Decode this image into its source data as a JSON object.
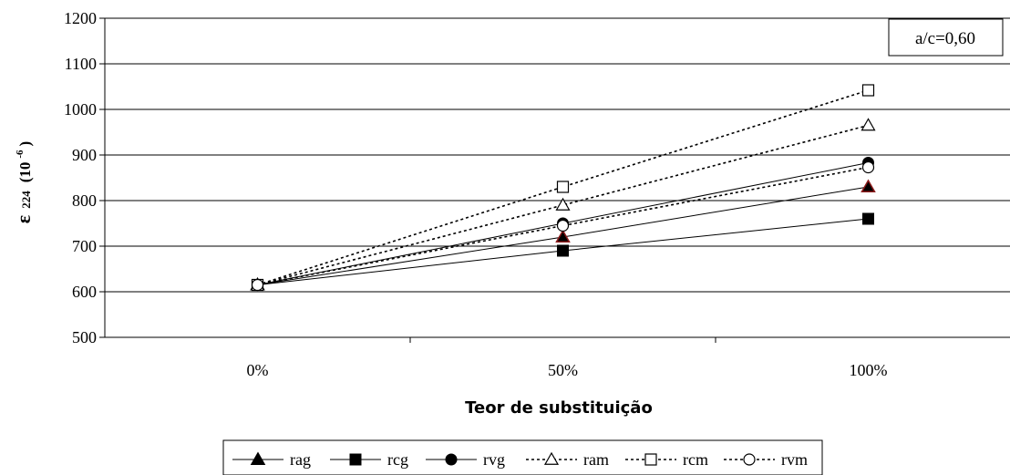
{
  "chart_data": {
    "type": "line",
    "title": "",
    "xlabel": "Teor de substituição",
    "ylabel": {
      "symbol": "ε",
      "subscript": "224",
      "unit_open": "(10",
      "exponent": "-6",
      "unit_close": ")"
    },
    "ylim": [
      500,
      1200
    ],
    "yticks": [
      "500",
      "600",
      "700",
      "800",
      "900",
      "1000",
      "1100",
      "1200"
    ],
    "categories": [
      "0%",
      "50%",
      "100%"
    ],
    "grid": true,
    "annotation": "a/c=0,60",
    "legend_position": "bottom",
    "series": [
      {
        "name": "rag",
        "values": [
          615,
          720,
          830
        ],
        "marker": "filled-triangle",
        "line": "solid"
      },
      {
        "name": "rcg",
        "values": [
          615,
          690,
          760
        ],
        "marker": "filled-square",
        "line": "solid"
      },
      {
        "name": "rvg",
        "values": [
          615,
          750,
          883
        ],
        "marker": "filled-circle",
        "line": "solid"
      },
      {
        "name": "ram",
        "values": [
          615,
          790,
          965
        ],
        "marker": "open-triangle",
        "line": "dotted"
      },
      {
        "name": "rcm",
        "values": [
          615,
          830,
          1042
        ],
        "marker": "open-square",
        "line": "dotted"
      },
      {
        "name": "rvm",
        "values": [
          615,
          745,
          873
        ],
        "marker": "open-circle",
        "line": "dotted"
      }
    ],
    "colors": {
      "line": "#000000",
      "grid": "#000000",
      "rag_marker_outline": "#8b1a1a"
    }
  }
}
